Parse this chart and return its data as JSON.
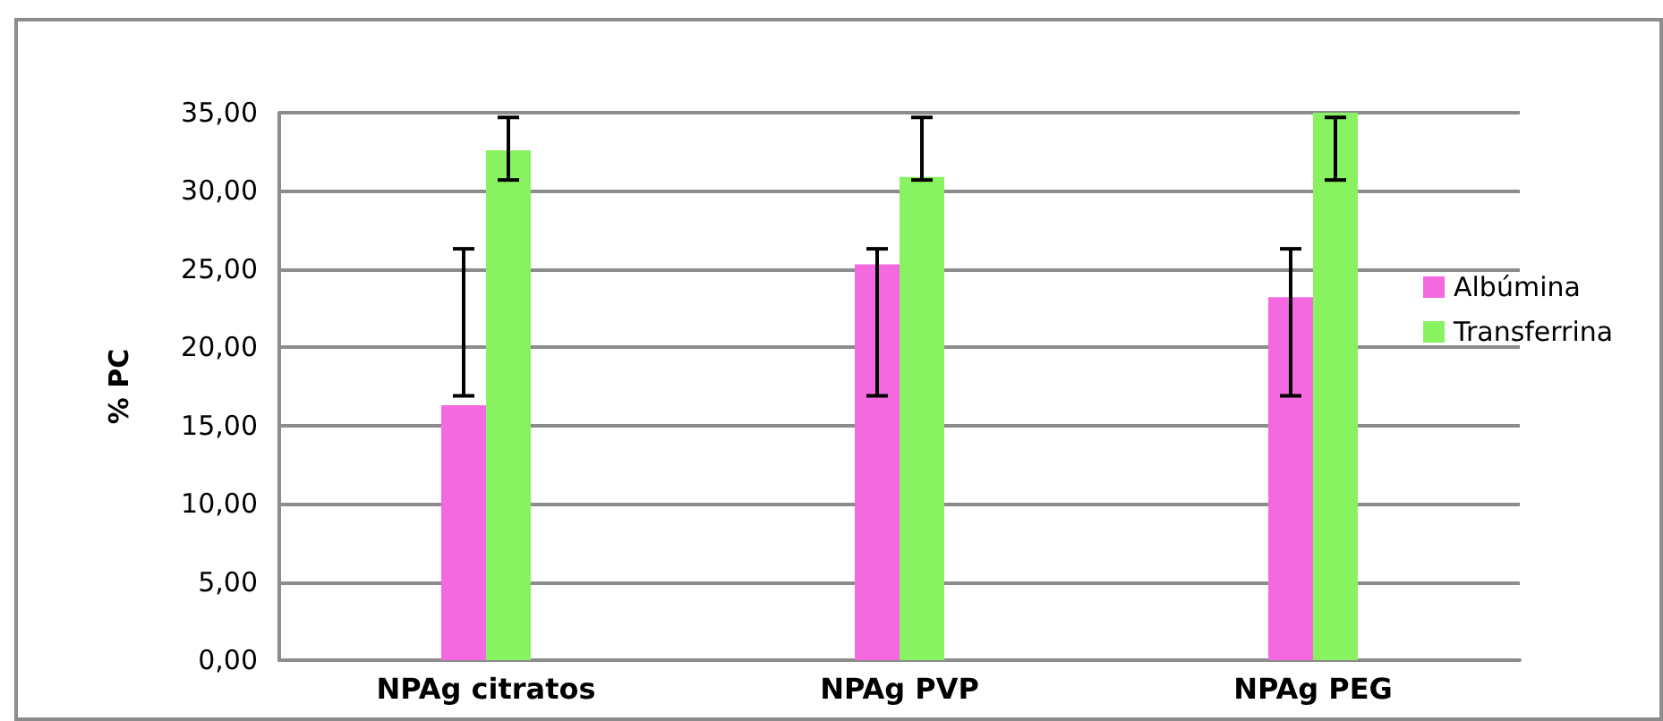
{
  "chart_data": {
    "type": "bar",
    "ylabel": "% PC",
    "categories": [
      "NPAg citratos",
      "NPAg PVP",
      "NPAg PEG"
    ],
    "series": [
      {
        "name": "Albúmina",
        "color": "#f469e0",
        "values": [
          16.3,
          25.3,
          23.2
        ],
        "errors": [
          [
            16.9,
            26.3
          ],
          [
            16.9,
            26.3
          ],
          [
            16.9,
            26.3
          ]
        ]
      },
      {
        "name": "Transferrina",
        "color": "#88f261",
        "values": [
          32.6,
          30.9,
          35.0
        ],
        "errors": [
          [
            30.7,
            34.7
          ],
          [
            30.7,
            34.7
          ],
          [
            30.7,
            34.7
          ]
        ]
      }
    ],
    "ylim": [
      0,
      35
    ],
    "yticks": [
      {
        "value": 0,
        "label": "0,00"
      },
      {
        "value": 5,
        "label": "5,00"
      },
      {
        "value": 10,
        "label": "10,00"
      },
      {
        "value": 15,
        "label": "15,00"
      },
      {
        "value": 20,
        "label": "20,00"
      },
      {
        "value": 25,
        "label": "25,00"
      },
      {
        "value": 30,
        "label": "30,00"
      },
      {
        "value": 35,
        "label": "35,00"
      }
    ],
    "grid": "y",
    "legend": "right"
  }
}
